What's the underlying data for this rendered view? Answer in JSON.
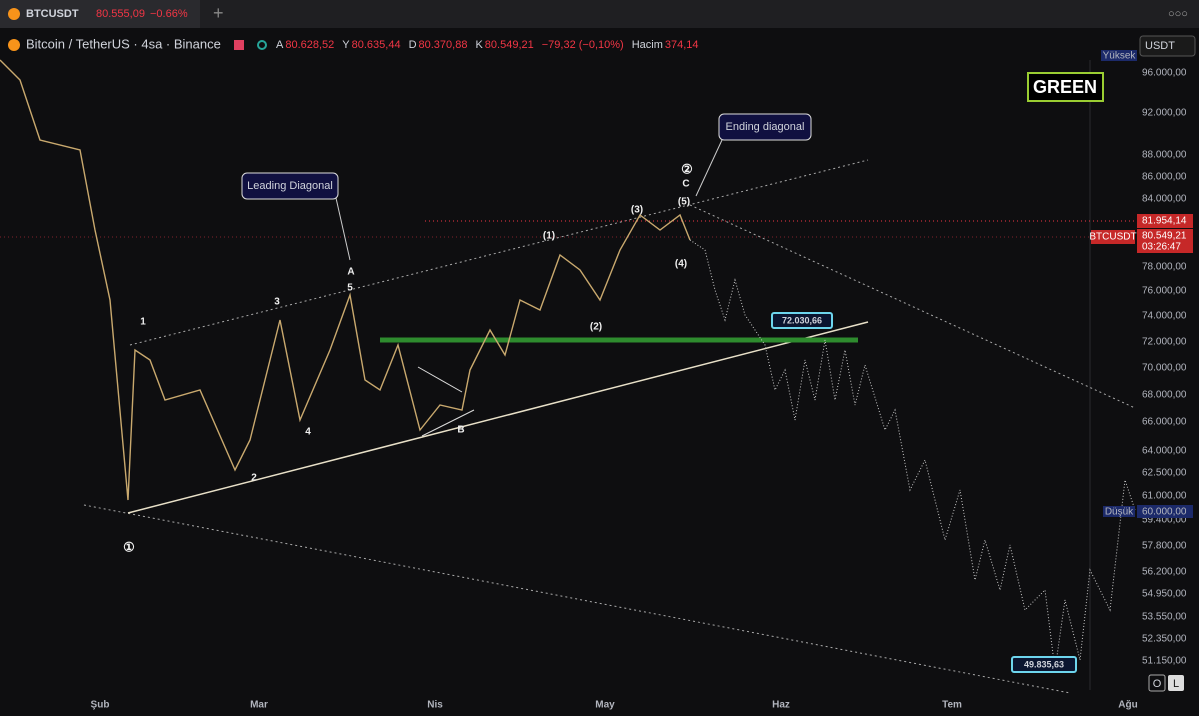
{
  "tab": {
    "symbol": "BTCUSDT",
    "price": "80.555,09",
    "change": "−0.66%"
  },
  "header": {
    "title": "Bitcoin / TetherUS · 4sa · Binance",
    "open_label": "A",
    "open": "80.628,52",
    "high_label": "Y",
    "high": "80.635,44",
    "low_label": "D",
    "low": "80.370,88",
    "close_label": "K",
    "close": "80.549,21",
    "change": "−79,32 (−0,10%)",
    "volume_label": "Hacim",
    "volume": "374,14"
  },
  "currency": "USDT",
  "price_axis": [
    "96.000,00",
    "92.000,00",
    "88.000,00",
    "86.000,00",
    "84.000,00",
    "78.000,00",
    "76.000,00",
    "74.000,00",
    "72.000,00",
    "70.000,00",
    "68.000,00",
    "66.000,00",
    "64.000,00",
    "62.500,00",
    "61.000,00",
    "59.400,00",
    "57.800,00",
    "56.200,00",
    "54.950,00",
    "53.550,00",
    "52.350,00",
    "51.150,00"
  ],
  "markers": {
    "high_label": "Yüksek",
    "low_label": "Düşük",
    "low_value": "60.000,00",
    "red_level": "81.954,14",
    "symbol": "BTCUSDT",
    "last": "80.549,21",
    "countdown": "03:26:47"
  },
  "time_axis": [
    "Şub",
    "Mar",
    "Nis",
    "May",
    "Haz",
    "Tem",
    "Ağu"
  ],
  "annotations": {
    "green": "GREEN",
    "leading": "Leading Diagonal",
    "ending": "Ending diagonal",
    "target1": "72.030,66",
    "target2": "49.835,63"
  },
  "waves": [
    "1",
    "2",
    "3",
    "4",
    "5",
    "A",
    "B",
    "C",
    "(1)",
    "(2)",
    "(3)",
    "(4)",
    "(5)",
    "①",
    "②"
  ],
  "buttons": [
    "O",
    "L"
  ]
}
